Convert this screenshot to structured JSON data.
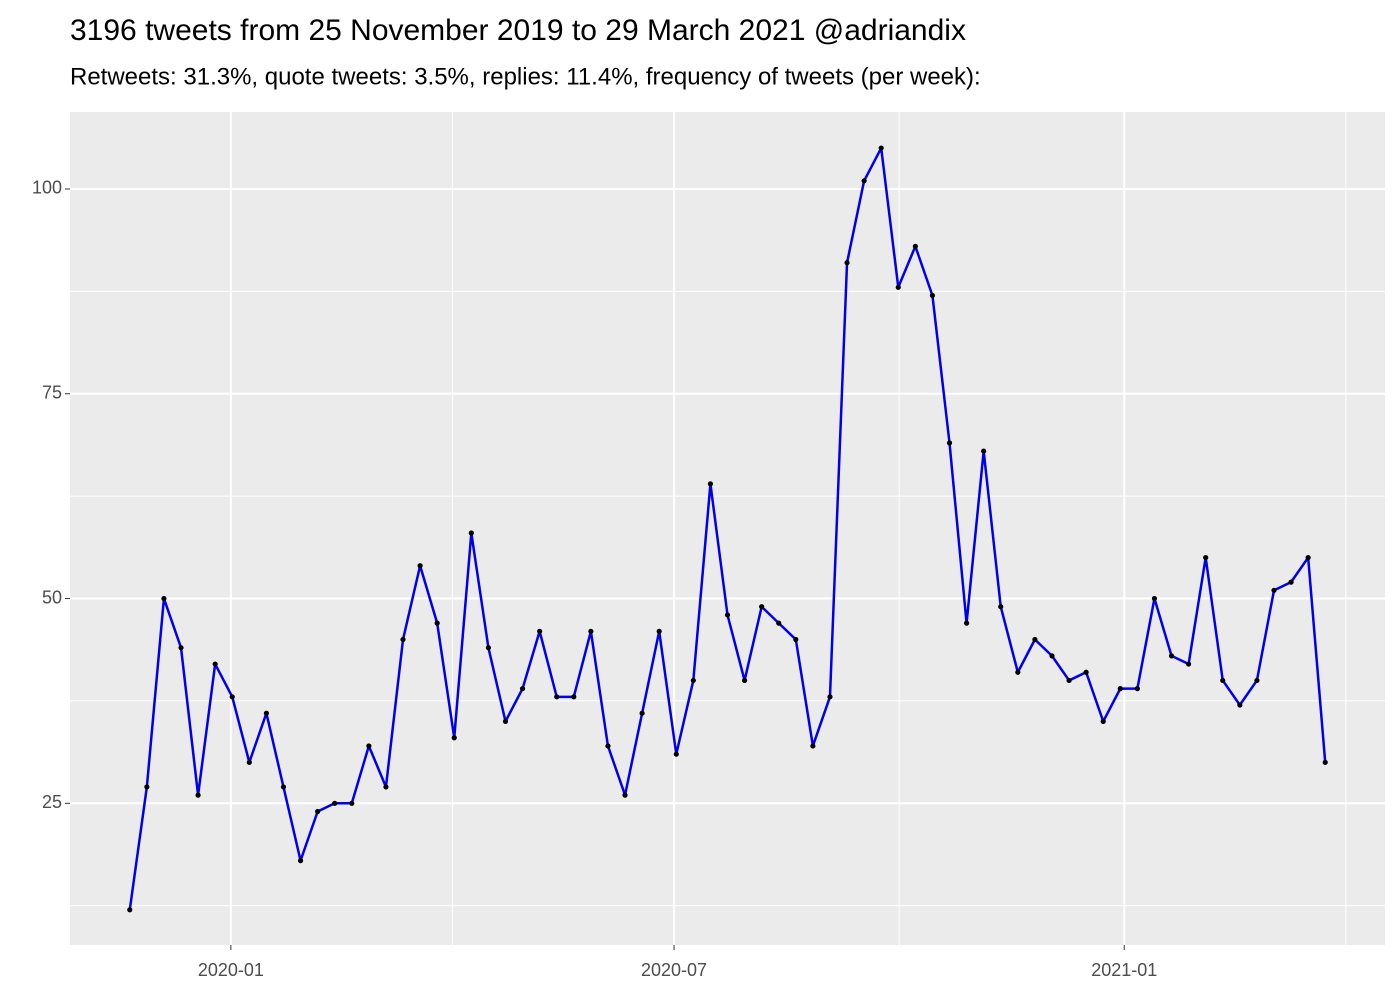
{
  "chart_data": {
    "type": "line",
    "title": "3196 tweets from 25 November 2019 to 29 March 2021 @adriandix",
    "subtitle": "Retweets: 31.3%, quote tweets: 3.5%, replies: 11.4%, frequency of tweets (per week):",
    "x": [
      0,
      1,
      2,
      3,
      4,
      5,
      6,
      7,
      8,
      9,
      10,
      11,
      12,
      13,
      14,
      15,
      16,
      17,
      18,
      19,
      20,
      21,
      22,
      23,
      24,
      25,
      26,
      27,
      28,
      29,
      30,
      31,
      32,
      33,
      34,
      35,
      36,
      37,
      38,
      39,
      40,
      41,
      42,
      43,
      44,
      45,
      46,
      47,
      48,
      49,
      50,
      51,
      52,
      53,
      54,
      55,
      56,
      57,
      58,
      59,
      60,
      61,
      62,
      63,
      64,
      65,
      66,
      67,
      68,
      69,
      70
    ],
    "series": [
      {
        "color": "#0000ee",
        "values": [
          12,
          27,
          50,
          44,
          26,
          42,
          38,
          30,
          36,
          27,
          18,
          24,
          25,
          25,
          32,
          27,
          45,
          54,
          47,
          33,
          58,
          44,
          35,
          39,
          46,
          38,
          38,
          46,
          32,
          26,
          36,
          46,
          31,
          40,
          64,
          48,
          40,
          49,
          47,
          45,
          32,
          38,
          91,
          101,
          105,
          88,
          93,
          87,
          69,
          47,
          68,
          49,
          41,
          45,
          43,
          40,
          41,
          35,
          39,
          39,
          50,
          43,
          42,
          55,
          40,
          37,
          40,
          51,
          52,
          55,
          30
        ]
      }
    ],
    "point_color": "#000000",
    "xlim": [
      -3.5,
      73.5
    ],
    "xticks": [
      {
        "value": 5.92,
        "label": "2020-01"
      },
      {
        "value": 31.87,
        "label": "2020-07"
      },
      {
        "value": 58.23,
        "label": "2021-01"
      }
    ],
    "ylim": [
      7.7,
      109.4
    ],
    "yticks": [
      25,
      50,
      75,
      100
    ],
    "grid": true
  }
}
